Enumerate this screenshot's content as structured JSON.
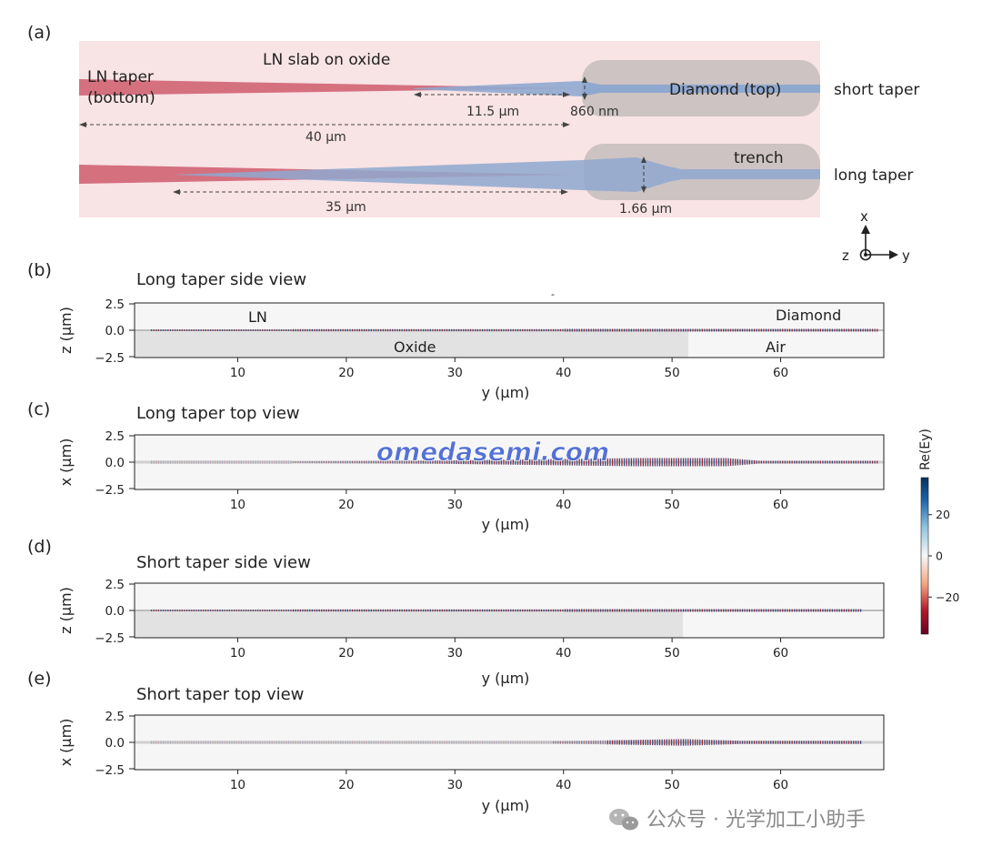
{
  "watermark_text": "omedasemi.com",
  "footer_text": "公众号 · 光学加工小助手",
  "panel_a": {
    "label": "(a)",
    "slab_label": "LN slab on oxide",
    "ln_taper_label_1": "LN taper",
    "ln_taper_label_2": "(bottom)",
    "diamond_label": "Diamond (top)",
    "short_taper_label": "short taper",
    "long_taper_label": "long taper",
    "trench_label": "trench",
    "dim_11_5": "11.5 µm",
    "dim_860": "860 nm",
    "dim_40": "40 µm",
    "dim_35": "35 µm",
    "dim_1_66": "1.66 µm",
    "axis_x": "x",
    "axis_z": "z",
    "axis_y": "y"
  },
  "colorbar": {
    "label": "Re(Ey)",
    "ticks": [
      "20",
      "0",
      "−20"
    ],
    "tick_values": [
      20,
      0,
      -20
    ],
    "range": [
      -38,
      38
    ],
    "color_low": "#7a0c17",
    "color_mid": "#f7f7f7",
    "color_high": "#0e4a83"
  },
  "colors": {
    "slab": "#f8e3e5",
    "ln_taper": "#d5707f",
    "diamond_taper": "#8fa8cf",
    "trench": "#c9c1c0",
    "oxide": "#e2e2e2",
    "plot_bg": "#f6f6f6"
  },
  "panels": [
    {
      "id": "b",
      "label": "(b)",
      "title": "Long taper side view",
      "ylabel": "z (µm)",
      "xlabel": "y (µm)",
      "yticks": [
        "2.5",
        "0.0",
        "−2.5"
      ],
      "xticks": [
        "10",
        "20",
        "30",
        "40",
        "50",
        "60"
      ],
      "xtick_values": [
        10,
        20,
        30,
        40,
        50,
        60
      ],
      "xlim": [
        0.5,
        69.5
      ],
      "ylim": [
        -2.5,
        2.5
      ],
      "view": "side",
      "field_start": 2,
      "field_end": 69,
      "oxide_end": 51.5,
      "annotations": [
        {
          "text": "LN",
          "x": 11,
          "y": 1.2
        },
        {
          "text": "Diamond",
          "x": 63,
          "y": 1.3
        },
        {
          "text": "Oxide",
          "x": 26,
          "y": -1.2
        },
        {
          "text": "Air",
          "x": 60,
          "y": -1.2
        }
      ]
    },
    {
      "id": "c",
      "label": "(c)",
      "title": "Long taper top view",
      "ylabel": "x (µm)",
      "xlabel": "y (µm)",
      "yticks": [
        "2.5",
        "0.0",
        "−2.5"
      ],
      "xticks": [
        "10",
        "20",
        "30",
        "40",
        "50",
        "60"
      ],
      "xtick_values": [
        10,
        20,
        30,
        40,
        50,
        60
      ],
      "xlim": [
        0.5,
        69.5
      ],
      "ylim": [
        -2.5,
        2.5
      ],
      "view": "top_long",
      "field_start": 2,
      "field_end": 69,
      "annotations": []
    },
    {
      "id": "d",
      "label": "(d)",
      "title": "Short taper side view",
      "ylabel": "z (µm)",
      "xlabel": "y (µm)",
      "yticks": [
        "2.5",
        "0.0",
        "−2.5"
      ],
      "xticks": [
        "10",
        "20",
        "30",
        "40",
        "50",
        "60"
      ],
      "xtick_values": [
        10,
        20,
        30,
        40,
        50,
        60
      ],
      "xlim": [
        0.5,
        69.5
      ],
      "ylim": [
        -2.5,
        2.5
      ],
      "view": "side",
      "field_start": 2,
      "field_end": 67.5,
      "oxide_end": 51,
      "annotations": []
    },
    {
      "id": "e",
      "label": "(e)",
      "title": "Short taper top view",
      "ylabel": "x (µm)",
      "xlabel": "y (µm)",
      "yticks": [
        "2.5",
        "0.0",
        "−2.5"
      ],
      "xticks": [
        "10",
        "20",
        "30",
        "40",
        "50",
        "60"
      ],
      "xtick_values": [
        10,
        20,
        30,
        40,
        50,
        60
      ],
      "xlim": [
        0.5,
        69.5
      ],
      "ylim": [
        -2.5,
        2.5
      ],
      "view": "top_short",
      "field_start": 2,
      "field_end": 67.5,
      "annotations": []
    }
  ]
}
